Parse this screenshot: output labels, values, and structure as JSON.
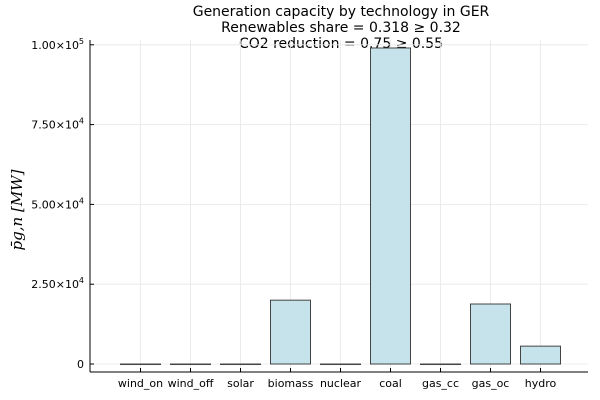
{
  "chart_data": {
    "type": "bar",
    "title_lines": [
      "Generation capacity by technology in GER",
      "Renewables share = 0.318 ≥ 0.32",
      "CO2 reduction = 0.75 ≥ 0.55"
    ],
    "ylabel": "p̄g,n [MW]",
    "categories": [
      "wind_on",
      "wind_off",
      "solar",
      "biomass",
      "nuclear",
      "coal",
      "gas_cc",
      "gas_oc",
      "hydro"
    ],
    "values": [
      0,
      0,
      0,
      20000,
      0,
      99000,
      0,
      18800,
      5600
    ],
    "ylim": [
      -2500,
      101500
    ],
    "y_ticks": [
      {
        "value": 0,
        "label": "0",
        "exp": ""
      },
      {
        "value": 25000,
        "label": "2.50×10",
        "exp": "4"
      },
      {
        "value": 50000,
        "label": "5.00×10",
        "exp": "4"
      },
      {
        "value": 75000,
        "label": "7.50×10",
        "exp": "4"
      },
      {
        "value": 100000,
        "label": "1.00×10",
        "exp": "5"
      }
    ],
    "grid": true,
    "colors": {
      "bar_fill": "#c6e3ec",
      "bar_stroke": "#444444",
      "grid": "#e6e6e6",
      "axis": "#000000"
    }
  }
}
